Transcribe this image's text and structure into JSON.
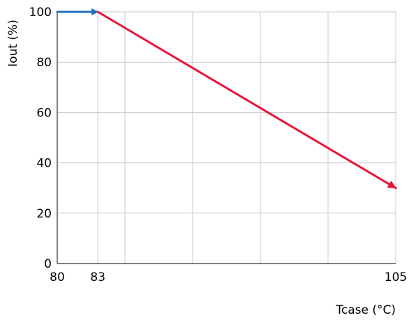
{
  "chart_data": {
    "type": "line",
    "xlabel": "Tcase (°C)",
    "ylabel": "Iout (%)",
    "xlim": [
      80,
      105
    ],
    "ylim": [
      0,
      100
    ],
    "x_tick_values": [
      80,
      83,
      85,
      90,
      95,
      100,
      105
    ],
    "x_tick_labels": [
      "80",
      "83",
      "",
      "",
      "",
      "",
      "105"
    ],
    "y_ticks": [
      0,
      20,
      40,
      60,
      80,
      100
    ],
    "grid": true,
    "legend": "none",
    "series": [
      {
        "color": "#1f6fc0",
        "arrow": true,
        "points": [
          [
            80,
            100
          ],
          [
            83,
            100
          ]
        ]
      },
      {
        "color": "#e8143c",
        "arrow": true,
        "points": [
          [
            83,
            100
          ],
          [
            105,
            30
          ]
        ]
      }
    ]
  }
}
